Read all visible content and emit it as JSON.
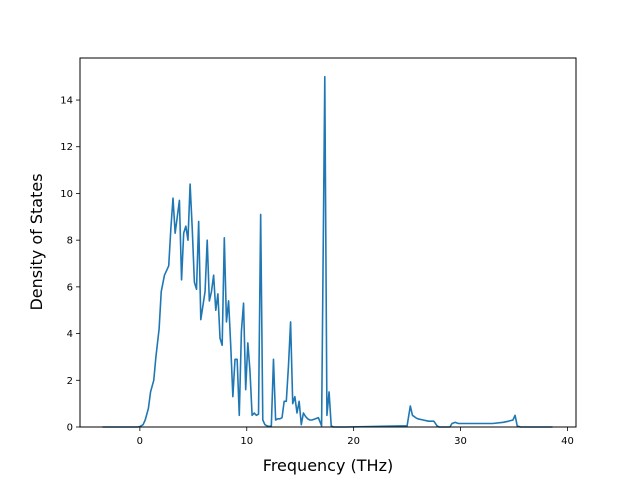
{
  "chart_data": {
    "type": "line",
    "title": "",
    "xlabel": "Frequency (THz)",
    "ylabel": "Density of States",
    "xlim": [
      -5.6,
      40.8
    ],
    "ylim": [
      0,
      15.8
    ],
    "xticks": [
      0,
      10,
      20,
      30,
      40
    ],
    "yticks": [
      0,
      2,
      4,
      6,
      8,
      10,
      12,
      14
    ],
    "grid": false,
    "legend": "none",
    "series_color": "#1f77b4",
    "series": [
      {
        "x": [
          -3.5,
          -0.2,
          0.0,
          0.3,
          0.5,
          0.8,
          1.0,
          1.3,
          1.5,
          1.8,
          2.0,
          2.3,
          2.5,
          2.7,
          2.9,
          3.1,
          3.3,
          3.5,
          3.7,
          3.9,
          4.1,
          4.3,
          4.5,
          4.7,
          4.9,
          5.1,
          5.3,
          5.5,
          5.7,
          5.9,
          6.1,
          6.3,
          6.5,
          6.7,
          6.9,
          7.1,
          7.3,
          7.5,
          7.7,
          7.9,
          8.1,
          8.3,
          8.5,
          8.7,
          8.9,
          9.1,
          9.3,
          9.5,
          9.7,
          9.9,
          10.1,
          10.3,
          10.5,
          10.7,
          10.9,
          11.1,
          11.3,
          11.5,
          11.7,
          11.9,
          12.1,
          12.3,
          12.5,
          12.7,
          12.9,
          13.1,
          13.3,
          13.5,
          13.7,
          13.9,
          14.1,
          14.3,
          14.5,
          14.7,
          14.9,
          15.1,
          15.3,
          15.5,
          15.7,
          15.9,
          16.1,
          16.4,
          16.7,
          17.0,
          17.3,
          17.5,
          17.7,
          17.9,
          18.1,
          18.3,
          18.5,
          18.8,
          19.0,
          19.3,
          25.0,
          25.3,
          25.5,
          25.8,
          26.0,
          26.5,
          27.0,
          27.5,
          27.8,
          28.0,
          29.0,
          29.2,
          29.5,
          29.8,
          30.0,
          31.0,
          32.0,
          33.0,
          34.0,
          34.5,
          34.9,
          35.1,
          35.3,
          35.6,
          38.6
        ],
        "y": [
          0,
          0,
          0.02,
          0.1,
          0.3,
          0.8,
          1.5,
          2.0,
          3.0,
          4.2,
          5.8,
          6.5,
          6.7,
          6.9,
          8.5,
          9.8,
          8.3,
          9.0,
          9.7,
          6.3,
          8.3,
          8.6,
          8.0,
          10.4,
          8.5,
          6.2,
          5.9,
          8.8,
          4.6,
          5.2,
          5.8,
          8.0,
          5.4,
          5.8,
          6.5,
          5.0,
          5.7,
          3.8,
          3.5,
          8.1,
          4.5,
          5.4,
          3.5,
          1.3,
          2.9,
          2.9,
          0.5,
          4.1,
          5.3,
          1.6,
          3.6,
          2.4,
          0.5,
          0.6,
          0.5,
          0.55,
          9.1,
          0.3,
          0.1,
          0.05,
          0.02,
          0.05,
          2.9,
          0.3,
          0.35,
          0.35,
          0.4,
          1.1,
          1.1,
          2.6,
          4.5,
          1.0,
          1.3,
          0.6,
          1.1,
          0.1,
          0.6,
          0.45,
          0.35,
          0.3,
          0.3,
          0.35,
          0.4,
          0.05,
          15.0,
          0.5,
          1.5,
          0.05,
          0,
          0,
          0,
          0,
          0,
          0,
          0.05,
          0.9,
          0.5,
          0.4,
          0.35,
          0.3,
          0.25,
          0.25,
          0.05,
          0,
          0,
          0.15,
          0.2,
          0.15,
          0.15,
          0.15,
          0.15,
          0.15,
          0.2,
          0.25,
          0.3,
          0.5,
          0.05,
          0,
          0
        ]
      }
    ]
  }
}
